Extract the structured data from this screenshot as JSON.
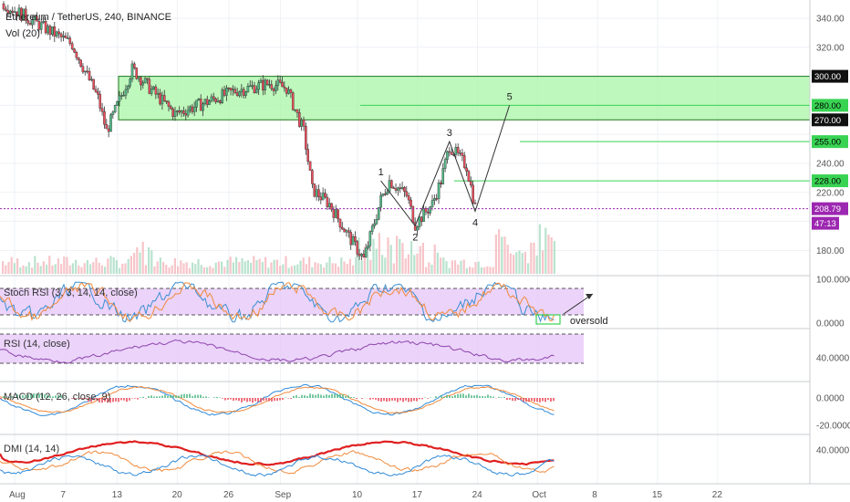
{
  "header": {
    "title": "Ethereum / TetherUS, 240, BINANCE",
    "volume_label": "Vol (20)"
  },
  "colors": {
    "up": "#53b987",
    "down": "#eb4d5c",
    "zone_fill": "#aaf5a5",
    "zone_border": "#1e7a1e",
    "level_line": "#39d353",
    "price_line": "#9c27b0",
    "volume_up": "#a7dcc2",
    "volume_down": "#f5b7bc",
    "osc_band": "#e6c8f7",
    "rsi_line": "#8e44ad",
    "stoch_k": "#3b8fd1",
    "stoch_d": "#f08a3c",
    "macd_line": "#2f8ad8",
    "signal_line": "#f08a3c",
    "dmi_adx": "#e02020",
    "dmi_plus": "#f08a3c",
    "dmi_minus": "#2f8ad8",
    "wave_line": "#333333"
  },
  "chart_data": {
    "type": "candlestick",
    "symbol": "Ethereum / TetherUS",
    "interval": "240",
    "exchange": "BINANCE",
    "x_axis": {
      "ticks": [
        "Aug",
        "7",
        "13",
        "20",
        "26",
        "Sep",
        "10",
        "17",
        "24",
        "Oct",
        "8",
        "15",
        "22"
      ]
    },
    "price_axis": {
      "ticks": [
        "340.00",
        "320.00",
        "300.00",
        "280.00",
        "270.00",
        "255.00",
        "240.00",
        "228.00",
        "220.00",
        "208.79",
        "180.00"
      ],
      "ylim": [
        160,
        350
      ]
    },
    "zone": {
      "top": 300.0,
      "bottom": 270.0
    },
    "levels": [
      {
        "price": 280.0,
        "label": "280.00"
      },
      {
        "price": 255.0,
        "label": "255.00"
      },
      {
        "price": 228.0,
        "label": "228.00"
      }
    ],
    "current_price": {
      "price": 208.79,
      "label": "208.79",
      "countdown": "47:13"
    },
    "price_path_keypoints": [
      {
        "date": "Aug 1",
        "close": 350
      },
      {
        "date": "Aug 9",
        "close": 322
      },
      {
        "date": "Aug 12",
        "close": 285
      },
      {
        "date": "Aug 13",
        "close": 262
      },
      {
        "date": "Aug 16",
        "close": 305
      },
      {
        "date": "Aug 18",
        "close": 292
      },
      {
        "date": "Aug 21",
        "close": 274
      },
      {
        "date": "Aug 25",
        "close": 283
      },
      {
        "date": "Aug 28",
        "close": 290
      },
      {
        "date": "Sep 1",
        "close": 295
      },
      {
        "date": "Sep 3",
        "close": 292
      },
      {
        "date": "Sep 5",
        "close": 262
      },
      {
        "date": "Sep 6",
        "close": 222
      },
      {
        "date": "Sep 8",
        "close": 212
      },
      {
        "date": "Sep 10",
        "close": 192
      },
      {
        "date": "Sep 12",
        "close": 174
      },
      {
        "date": "Sep 14",
        "close": 215
      },
      {
        "date": "Sep 15",
        "close": 228
      },
      {
        "date": "Sep 17",
        "close": 218
      },
      {
        "date": "Sep 18",
        "close": 198
      },
      {
        "date": "Sep 20",
        "close": 212
      },
      {
        "date": "Sep 21",
        "close": 228
      },
      {
        "date": "Sep 22",
        "close": 252
      },
      {
        "date": "Sep 23",
        "close": 245
      },
      {
        "date": "Sep 24",
        "close": 238
      },
      {
        "date": "Sep 25",
        "close": 210
      }
    ],
    "wave_points": [
      {
        "label": "1",
        "date": "Sep 14",
        "price": 228
      },
      {
        "label": "2",
        "date": "Sep 18",
        "price": 197
      },
      {
        "label": "3",
        "date": "Sep 22",
        "price": 255
      },
      {
        "label": "4",
        "date": "Sep 25",
        "price": 207
      },
      {
        "label": "5",
        "date": "Sep 29",
        "price": 280
      }
    ],
    "panels": [
      {
        "name": "Stoch RSI (3, 3, 14, 14, close)",
        "ticks": [
          "100.0000",
          "0.0000"
        ],
        "annotation": "oversold"
      },
      {
        "name": "RSI (14, close)",
        "ticks": [
          "40.0000"
        ]
      },
      {
        "name": "MACD (12, 26, close, 9)",
        "ticks": [
          "0.0000",
          "-20.0000"
        ]
      },
      {
        "name": "DMI (14, 14)",
        "ticks": [
          "40.0000"
        ]
      }
    ]
  }
}
